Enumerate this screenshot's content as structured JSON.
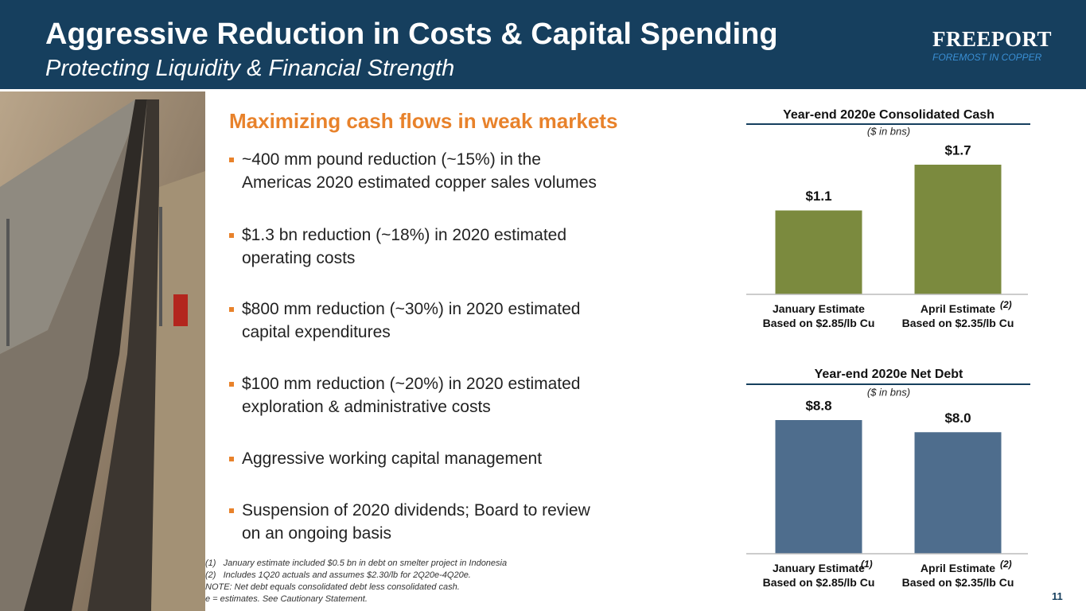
{
  "header": {
    "title": "Aggressive Reduction in Costs & Capital Spending",
    "subtitle": "Protecting Liquidity & Financial Strength",
    "logo": "FREEPORT",
    "tagline": "FOREMOST IN COPPER"
  },
  "body": {
    "heading": "Maximizing cash flows in weak markets",
    "bullets": [
      "~400 mm pound reduction (~15%) in the\nAmericas 2020 estimated copper sales volumes",
      "$1.3 bn reduction (~18%) in 2020 estimated\noperating costs",
      "$800 mm reduction (~30%) in 2020 estimated\ncapital expenditures",
      "$100 mm reduction (~20%) in 2020 estimated\nexploration & administrative costs",
      "Aggressive working capital management",
      "Suspension of 2020 dividends; Board to review\non an ongoing basis"
    ]
  },
  "footnotes": [
    "(1)   January estimate included $0.5 bn in debt on smelter project in Indonesia",
    "(2)   Includes 1Q20 actuals and assumes $2.30/lb for 2Q20e-4Q20e.",
    "NOTE: Net debt equals consolidated debt less consolidated cash.",
    "e = estimates. See Cautionary Statement."
  ],
  "page_number": "11",
  "chart_data": [
    {
      "type": "bar",
      "title": "Year-end 2020e Consolidated Cash",
      "subtitle": "($ in bns)",
      "categories": [
        "January Estimate\nBased on $2.85/lb Cu",
        "April Estimate\nBased on $2.35/lb Cu"
      ],
      "category_notes": [
        null,
        "(2)"
      ],
      "values": [
        1.1,
        1.7
      ],
      "value_labels": [
        "$1.1",
        "$1.7"
      ],
      "color": "#7b8a3e"
    },
    {
      "type": "bar",
      "title": "Year-end 2020e Net Debt",
      "subtitle": "($ in bns)",
      "categories": [
        "January Estimate\nBased on $2.85/lb Cu",
        "April Estimate\nBased on $2.35/lb Cu"
      ],
      "category_notes": [
        "(1)",
        "(2)"
      ],
      "values": [
        8.8,
        8.0
      ],
      "value_labels": [
        "$8.8",
        "$8.0"
      ],
      "color": "#4e6d8d"
    }
  ]
}
